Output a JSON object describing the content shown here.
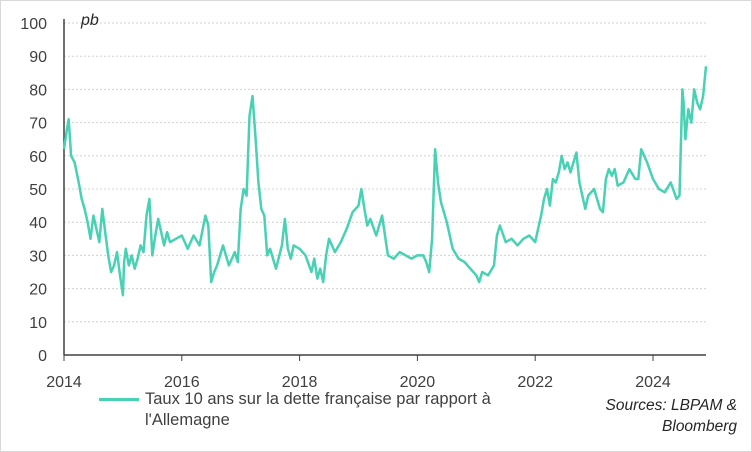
{
  "chart_data": {
    "type": "line",
    "title": "",
    "unit_label": "pb",
    "xlabel": "",
    "ylabel": "",
    "ylim": [
      0,
      100
    ],
    "yticks": [
      0,
      10,
      20,
      30,
      40,
      50,
      60,
      70,
      80,
      90,
      100
    ],
    "xlim": [
      2014.0,
      2024.9
    ],
    "xticks": [
      "2014",
      "2016",
      "2018",
      "2020",
      "2022",
      "2024"
    ],
    "grid": "horizontal",
    "legend_position": "bottom-left",
    "series": [
      {
        "name": "Taux 10 ans sur la dette française par rapport à l'Allemagne",
        "color": "#48d1b3",
        "x": [
          2014.0,
          2014.05,
          2014.08,
          2014.12,
          2014.18,
          2014.25,
          2014.3,
          2014.35,
          2014.4,
          2014.45,
          2014.5,
          2014.55,
          2014.6,
          2014.65,
          2014.7,
          2014.75,
          2014.8,
          2014.85,
          2014.9,
          2014.95,
          2015.0,
          2015.02,
          2015.05,
          2015.1,
          2015.15,
          2015.2,
          2015.25,
          2015.3,
          2015.35,
          2015.4,
          2015.45,
          2015.5,
          2015.55,
          2015.6,
          2015.65,
          2015.7,
          2015.75,
          2015.8,
          2015.9,
          2016.0,
          2016.1,
          2016.2,
          2016.3,
          2016.4,
          2016.45,
          2016.5,
          2016.55,
          2016.6,
          2016.7,
          2016.8,
          2016.9,
          2016.95,
          2017.0,
          2017.05,
          2017.1,
          2017.15,
          2017.2,
          2017.25,
          2017.3,
          2017.35,
          2017.4,
          2017.45,
          2017.5,
          2017.6,
          2017.7,
          2017.75,
          2017.8,
          2017.85,
          2017.9,
          2018.0,
          2018.1,
          2018.2,
          2018.25,
          2018.3,
          2018.35,
          2018.4,
          2018.45,
          2018.5,
          2018.6,
          2018.7,
          2018.8,
          2018.9,
          2019.0,
          2019.05,
          2019.1,
          2019.15,
          2019.2,
          2019.3,
          2019.4,
          2019.5,
          2019.6,
          2019.7,
          2019.8,
          2019.9,
          2020.0,
          2020.1,
          2020.15,
          2020.2,
          2020.25,
          2020.3,
          2020.35,
          2020.4,
          2020.5,
          2020.6,
          2020.7,
          2020.8,
          2020.9,
          2021.0,
          2021.05,
          2021.1,
          2021.2,
          2021.3,
          2021.35,
          2021.4,
          2021.5,
          2021.6,
          2021.7,
          2021.8,
          2021.9,
          2022.0,
          2022.05,
          2022.1,
          2022.15,
          2022.2,
          2022.25,
          2022.3,
          2022.35,
          2022.4,
          2022.45,
          2022.5,
          2022.55,
          2022.6,
          2022.7,
          2022.75,
          2022.8,
          2022.85,
          2022.9,
          2023.0,
          2023.1,
          2023.15,
          2023.2,
          2023.25,
          2023.3,
          2023.35,
          2023.4,
          2023.5,
          2023.6,
          2023.7,
          2023.75,
          2023.8,
          2023.9,
          2024.0,
          2024.1,
          2024.2,
          2024.3,
          2024.4,
          2024.45,
          2024.5,
          2024.52,
          2024.55,
          2024.6,
          2024.65,
          2024.7,
          2024.75,
          2024.8,
          2024.85,
          2024.9
        ],
        "y": [
          62,
          68,
          71,
          60,
          58,
          52,
          47,
          44,
          40,
          35,
          42,
          38,
          34,
          44,
          37,
          30,
          25,
          27,
          31,
          24,
          18,
          28,
          32,
          27,
          30,
          26,
          29,
          33,
          31,
          42,
          47,
          30,
          36,
          41,
          37,
          33,
          37,
          34,
          35,
          36,
          32,
          36,
          33,
          42,
          39,
          22,
          25,
          27,
          33,
          27,
          31,
          28,
          44,
          50,
          48,
          72,
          78,
          66,
          52,
          44,
          42,
          30,
          32,
          26,
          33,
          41,
          32,
          29,
          33,
          32,
          30,
          25,
          29,
          23,
          26,
          22,
          30,
          35,
          31,
          34,
          38,
          43,
          45,
          50,
          44,
          39,
          41,
          36,
          42,
          30,
          29,
          31,
          30,
          29,
          30,
          30,
          28,
          25,
          35,
          62,
          52,
          46,
          40,
          32,
          29,
          28,
          26,
          24,
          22,
          25,
          24,
          27,
          36,
          39,
          34,
          35,
          33,
          35,
          36,
          34,
          38,
          42,
          47,
          50,
          45,
          53,
          52,
          55,
          60,
          56,
          58,
          55,
          61,
          52,
          48,
          44,
          48,
          50,
          44,
          43,
          53,
          56,
          54,
          56,
          51,
          52,
          56,
          53,
          53,
          62,
          58,
          53,
          50,
          49,
          52,
          47,
          48,
          80,
          76,
          65,
          74,
          70,
          80,
          76,
          74,
          78,
          87
        ]
      }
    ]
  },
  "legend": {
    "label": "Taux 10 ans sur la dette française par rapport à l'Allemagne"
  },
  "source": "Sources: LBPAM & Bloomberg"
}
